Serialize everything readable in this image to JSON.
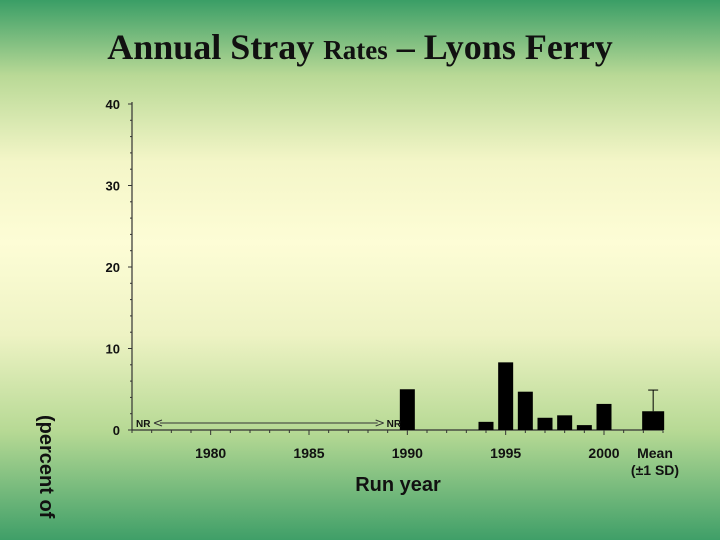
{
  "title": {
    "part1": "Annual Stray ",
    "part2": "Rates",
    "part3": " – Lyons Ferry"
  },
  "chart_data": {
    "type": "bar",
    "xlabel": "Run year",
    "ylabel": "(percent of",
    "ylim": [
      0,
      40
    ],
    "yticks": [
      0,
      10,
      20,
      30,
      40
    ],
    "xlim": [
      1976,
      2003
    ],
    "xticks": [
      1980,
      1985,
      1990,
      1995,
      2000
    ],
    "xtick_labels": [
      "1980",
      "1985",
      "1990",
      "1995",
      "2000"
    ],
    "mean_label_line1": "Mean",
    "mean_label_line2": "(±1 SD)",
    "nr_range": {
      "start": 1976,
      "end": 1989,
      "label_start": "NR",
      "label_end": "NR"
    },
    "years": [
      1990,
      1994,
      1995,
      1996,
      1997,
      1998,
      1999,
      2000
    ],
    "values": [
      5.0,
      1.0,
      8.3,
      4.7,
      1.5,
      1.8,
      0.6,
      3.2
    ],
    "mean": {
      "value": 2.3,
      "sd": 2.6
    }
  }
}
